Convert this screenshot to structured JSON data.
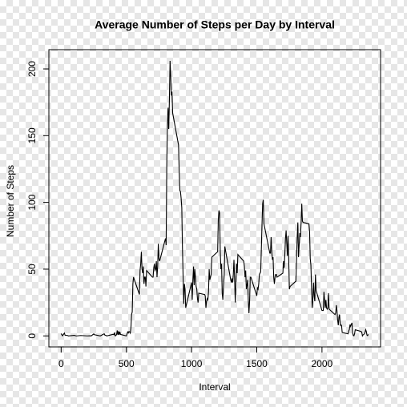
{
  "chart_data": {
    "type": "line",
    "title": "Average Number of Steps per Day by Interval",
    "x_label": "Interval",
    "y_label": "Number of Steps",
    "x": [
      0,
      10,
      25,
      30,
      50,
      55,
      100,
      115,
      120,
      150,
      200,
      225,
      230,
      250,
      255,
      300,
      330,
      335,
      340,
      350,
      400,
      405,
      410,
      415,
      420,
      425,
      430,
      435,
      440,
      445,
      450,
      455,
      500,
      505,
      510,
      515,
      520,
      525,
      530,
      535,
      540,
      545,
      550,
      555,
      600,
      605,
      610,
      615,
      620,
      625,
      630,
      635,
      640,
      645,
      650,
      655,
      700,
      705,
      710,
      715,
      720,
      725,
      730,
      735,
      740,
      745,
      750,
      755,
      800,
      805,
      810,
      815,
      820,
      825,
      830,
      835,
      840,
      845,
      850,
      855,
      900,
      905,
      910,
      915,
      920,
      925,
      930,
      935,
      940,
      945,
      950,
      955,
      1000,
      1005,
      1010,
      1015,
      1020,
      1025,
      1030,
      1035,
      1040,
      1045,
      1050,
      1055,
      1100,
      1105,
      1110,
      1115,
      1120,
      1125,
      1130,
      1135,
      1140,
      1145,
      1150,
      1155,
      1200,
      1205,
      1210,
      1215,
      1220,
      1225,
      1230,
      1235,
      1240,
      1245,
      1250,
      1255,
      1300,
      1305,
      1310,
      1315,
      1320,
      1325,
      1330,
      1335,
      1340,
      1345,
      1350,
      1355,
      1400,
      1405,
      1410,
      1415,
      1420,
      1425,
      1430,
      1435,
      1440,
      1445,
      1450,
      1455,
      1500,
      1505,
      1510,
      1515,
      1520,
      1525,
      1530,
      1535,
      1540,
      1545,
      1550,
      1555,
      1600,
      1605,
      1610,
      1615,
      1620,
      1625,
      1630,
      1635,
      1640,
      1645,
      1650,
      1655,
      1700,
      1705,
      1710,
      1715,
      1720,
      1725,
      1730,
      1735,
      1740,
      1745,
      1750,
      1755,
      1800,
      1805,
      1810,
      1815,
      1820,
      1825,
      1830,
      1835,
      1840,
      1845,
      1850,
      1855,
      1900,
      1905,
      1910,
      1915,
      1920,
      1925,
      1930,
      1935,
      1940,
      1945,
      1950,
      1955,
      2000,
      2005,
      2010,
      2015,
      2020,
      2025,
      2030,
      2035,
      2040,
      2045,
      2050,
      2055,
      2100,
      2105,
      2110,
      2115,
      2120,
      2125,
      2130,
      2135,
      2140,
      2145,
      2150,
      2155,
      2200,
      2205,
      2210,
      2215,
      2220,
      2225,
      2230,
      2235,
      2240,
      2245,
      2250,
      2255,
      2300,
      2305,
      2310,
      2315,
      2320,
      2325,
      2330,
      2335,
      2340,
      2345,
      2350,
      2355
    ],
    "values": [
      1.7,
      0.1,
      2.1,
      0.5,
      0.3,
      0,
      0.4,
      0,
      0,
      0.3,
      0,
      0.1,
      0,
      1.5,
      0.9,
      0,
      1.6,
      0.6,
      0.5,
      0,
      1.2,
      0.9,
      2.6,
      0,
      0.3,
      1.1,
      4.1,
      0.7,
      3.5,
      0.8,
      3.1,
      1.1,
      0,
      1.5,
      3,
      2.2,
      3.3,
      3,
      2.1,
      6,
      16,
      18,
      39,
      44,
      31,
      49,
      54,
      63,
      50,
      47,
      52,
      39,
      44,
      44,
      37,
      49,
      44,
      44,
      51,
      54,
      49,
      50,
      56,
      44,
      52,
      69,
      58,
      56,
      73,
      68,
      129,
      158,
      171,
      155,
      177,
      206,
      195,
      180,
      183,
      167,
      143,
      124,
      109,
      108,
      103,
      96,
      66,
      45,
      24,
      39,
      35,
      21,
      40,
      27,
      42,
      52,
      38,
      50,
      44,
      37,
      35,
      28,
      25,
      32,
      31,
      30,
      21,
      26,
      28,
      27,
      33,
      50,
      42,
      44,
      46,
      59,
      63,
      87,
      94,
      92,
      63,
      50,
      54,
      32,
      27,
      38,
      45,
      67,
      42,
      40,
      43,
      40,
      46,
      57,
      43,
      25,
      40,
      54,
      47,
      61,
      56,
      52,
      44,
      49,
      35,
      38,
      42,
      27,
      17,
      26,
      44,
      44,
      30,
      36,
      35,
      39,
      46,
      47,
      48,
      65,
      83,
      99,
      102,
      84,
      62,
      62,
      74,
      63,
      57,
      59,
      44,
      39,
      44,
      46,
      46,
      44,
      47,
      56,
      51,
      61,
      73,
      79,
      69,
      60,
      75,
      57,
      35,
      37,
      41,
      58,
      74,
      85,
      59,
      68,
      77,
      74,
      85,
      99,
      86,
      85,
      84,
      78,
      58,
      53,
      36,
      21,
      27,
      40,
      30,
      26,
      46,
      34,
      19,
      19,
      19,
      33,
      27,
      21,
      27,
      21,
      20,
      21,
      32,
      20,
      16,
      17,
      23,
      19,
      12,
      8,
      14,
      16,
      8,
      8,
      8,
      2.6,
      1.5,
      3.7,
      4.8,
      8.5,
      7.1,
      8.7,
      9.8,
      2.2,
      0.3,
      0.1,
      1.6,
      4.6,
      3.3,
      2.8,
      0,
      0.8,
      1,
      1.6,
      2.6,
      4.7,
      3.3,
      0.6,
      0.2,
      1.1
    ],
    "color": "#000000",
    "xlim": [
      -94.2,
      2449.2
    ],
    "ylim": [
      -8.25,
      214.42
    ],
    "xticks": [
      0,
      500,
      1000,
      1500,
      2000
    ],
    "yticks": [
      0,
      50,
      100,
      150,
      200
    ]
  }
}
